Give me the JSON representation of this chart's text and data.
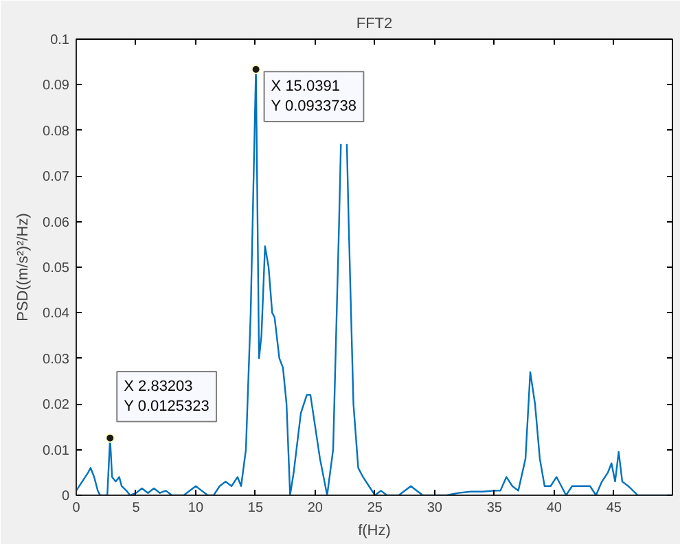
{
  "chart_data": {
    "type": "line",
    "title": "FFT2",
    "xlabel": "f(Hz)",
    "ylabel": "PSD((m/s²)²/Hz)",
    "xlim": [
      0,
      49.9
    ],
    "ylim": [
      0,
      0.1
    ],
    "xticks": [
      0,
      5,
      10,
      15,
      20,
      25,
      30,
      35,
      40,
      45
    ],
    "yticks": [
      0,
      0.01,
      0.02,
      0.03,
      0.04,
      0.05,
      0.06,
      0.07,
      0.08,
      0.09,
      0.1
    ],
    "grid": false,
    "marker": "none",
    "line_style": "solid",
    "series": [
      {
        "color": "#0072bd",
        "x": [
          0,
          0.5,
          1.0,
          1.2,
          1.5,
          1.8,
          2.0,
          2.6,
          2.83203,
          3.0,
          3.3,
          3.6,
          3.8,
          4.2,
          4.5,
          5,
          5.5,
          6,
          6.5,
          7,
          7.5,
          8,
          9,
          10,
          10.5,
          11,
          11.5,
          12,
          12.5,
          13,
          13.5,
          13.8,
          14.2,
          14.6,
          15.0391,
          15.3,
          15.5,
          15.8,
          16.1,
          16.4,
          16.6,
          17,
          17.3,
          17.6,
          17.9,
          18.2,
          18.8,
          19.3,
          19.6,
          20,
          20.4,
          21,
          21.5,
          22,
          22.15,
          22.4,
          22.65,
          22.8,
          23.2,
          23.6,
          24,
          24.5,
          25,
          25.5,
          26,
          27,
          28,
          29,
          30,
          31,
          32,
          33,
          34,
          35,
          35.5,
          36,
          36.5,
          37,
          37.6,
          38,
          38.4,
          38.8,
          39.2,
          39.7,
          40.2,
          40.6,
          41,
          41.5,
          42.5,
          43,
          43.5,
          44,
          44.5,
          44.8,
          45.1,
          45.4,
          45.7,
          46.2,
          47,
          49.9
        ],
        "values": [
          0.001,
          0.003,
          0.005,
          0.006,
          0.004,
          0.001,
          0.0,
          0.0,
          0.0125323,
          0.004,
          0.003,
          0.004,
          0.002,
          0.001,
          0.0,
          0.0005,
          0.0015,
          0.0005,
          0.0015,
          0.0005,
          0.001,
          0.0,
          0.0,
          0.002,
          0.001,
          0.0,
          0.0,
          0.002,
          0.003,
          0.002,
          0.004,
          0.002,
          0.01,
          0.04,
          0.0933738,
          0.03,
          0.035,
          0.0546,
          0.05,
          0.04,
          0.039,
          0.03,
          0.028,
          0.02,
          0.0,
          0.005,
          0.018,
          0.022,
          0.022,
          0.015,
          0.008,
          0.0,
          0.01,
          0.06,
          0.077,
          null,
          0.077,
          0.06,
          0.02,
          0.006,
          0.004,
          0.002,
          0.0,
          0.001,
          0.0,
          0.0,
          0.002,
          0.0,
          0.0,
          0.0,
          0.0005,
          0.0008,
          0.0008,
          0.001,
          0.001,
          0.004,
          0.002,
          0.001,
          0.008,
          0.027,
          0.02,
          0.008,
          0.002,
          0.002,
          0.004,
          0.002,
          0.0,
          0.002,
          0.002,
          0.002,
          0.0,
          0.003,
          0.005,
          0.007,
          0.003,
          0.0095,
          0.003,
          0.002,
          0.0,
          0.0
        ]
      }
    ],
    "annotations": [
      {
        "text": "X 2.83203\nY 0.0125323",
        "x": 2.83203,
        "y": 0.0125323
      },
      {
        "text": "X 15.0391\nY 0.0933738",
        "x": 15.0391,
        "y": 0.0933738
      }
    ]
  }
}
